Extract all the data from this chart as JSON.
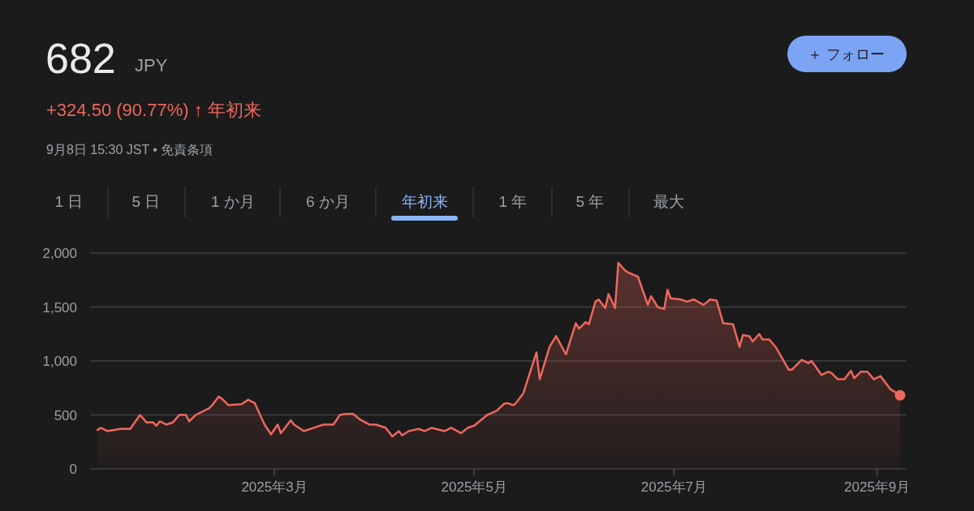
{
  "chart_data": {
    "type": "area",
    "title": "682",
    "subtitle": "+324.50 (90.77%) ↑ 年初来",
    "annotations": [
      "JPY",
      "9月8日 15:30 JST • 免責条項",
      "＋ フォロー",
      "1 日",
      "5 日",
      "1 か月",
      "6 か月",
      "年初来",
      "1 年",
      "5 年",
      "最大"
    ],
    "x": [
      "2025-01-06",
      "2025-01-07",
      "2025-01-09",
      "2025-01-13",
      "2025-01-16",
      "2025-01-19",
      "2025-01-21",
      "2025-01-23",
      "2025-01-24",
      "2025-01-25",
      "2025-01-27",
      "2025-01-29",
      "2025-01-31",
      "2025-02-02",
      "2025-02-03",
      "2025-02-05",
      "2025-02-09",
      "2025-02-10",
      "2025-02-12",
      "2025-02-13",
      "2025-02-15",
      "2025-02-19",
      "2025-02-21",
      "2025-02-23",
      "2025-02-26",
      "2025-02-28",
      "2025-03-02",
      "2025-03-03",
      "2025-03-06",
      "2025-03-07",
      "2025-03-10",
      "2025-03-14",
      "2025-03-16",
      "2025-03-19",
      "2025-03-21",
      "2025-03-23",
      "2025-03-25",
      "2025-03-27",
      "2025-03-30",
      "2025-04-01",
      "2025-04-04",
      "2025-04-06",
      "2025-04-08",
      "2025-04-09",
      "2025-04-11",
      "2025-04-14",
      "2025-04-16",
      "2025-04-18",
      "2025-04-22",
      "2025-04-24",
      "2025-04-27",
      "2025-04-29",
      "2025-05-01",
      "2025-05-05",
      "2025-05-08",
      "2025-05-10",
      "2025-05-11",
      "2025-05-13",
      "2025-05-14",
      "2025-05-16",
      "2025-05-18",
      "2025-05-20",
      "2025-05-21",
      "2025-05-24",
      "2025-05-26",
      "2025-05-29",
      "2025-06-01",
      "2025-06-02",
      "2025-06-04",
      "2025-06-05",
      "2025-06-07",
      "2025-06-08",
      "2025-06-10",
      "2025-06-11",
      "2025-06-13",
      "2025-06-14",
      "2025-06-16",
      "2025-06-17",
      "2025-06-20",
      "2025-06-23",
      "2025-06-24",
      "2025-06-26",
      "2025-06-28",
      "2025-06-29",
      "2025-06-30",
      "2025-07-03",
      "2025-07-05",
      "2025-07-07",
      "2025-07-10",
      "2025-07-12",
      "2025-07-14",
      "2025-07-16",
      "2025-07-19",
      "2025-07-21",
      "2025-07-22",
      "2025-07-24",
      "2025-07-25",
      "2025-07-27",
      "2025-07-28",
      "2025-07-30",
      "2025-08-01",
      "2025-08-05",
      "2025-08-06",
      "2025-08-09",
      "2025-08-11",
      "2025-08-12",
      "2025-08-15",
      "2025-08-17",
      "2025-08-18",
      "2025-08-20",
      "2025-08-22",
      "2025-08-24",
      "2025-08-25",
      "2025-08-27",
      "2025-08-29",
      "2025-08-31",
      "2025-09-02",
      "2025-09-05",
      "2025-09-08"
    ],
    "series": [
      {
        "color": "#ee675c",
        "values": [
          360,
          380,
          350,
          370,
          370,
          500,
          430,
          430,
          400,
          440,
          410,
          430,
          500,
          500,
          440,
          500,
          560,
          590,
          670,
          650,
          590,
          600,
          640,
          610,
          410,
          320,
          410,
          330,
          450,
          410,
          350,
          390,
          410,
          410,
          500,
          510,
          510,
          460,
          410,
          410,
          380,
          300,
          350,
          310,
          350,
          370,
          350,
          380,
          350,
          380,
          330,
          380,
          400,
          500,
          540,
          600,
          610,
          590,
          620,
          700,
          890,
          1080,
          830,
          1130,
          1230,
          1060,
          1350,
          1300,
          1360,
          1340,
          1550,
          1570,
          1490,
          1620,
          1490,
          1910,
          1840,
          1820,
          1780,
          1520,
          1600,
          1500,
          1480,
          1660,
          1580,
          1570,
          1550,
          1570,
          1520,
          1570,
          1560,
          1350,
          1340,
          1130,
          1240,
          1230,
          1180,
          1250,
          1200,
          1200,
          1130,
          920,
          920,
          1010,
          980,
          1000,
          870,
          900,
          890,
          830,
          830,
          910,
          840,
          900,
          900,
          830,
          860,
          740,
          682
        ]
      },
      {
        "type": "scatter",
        "color": "#ee675c",
        "marker": "circle",
        "x": [
          "2025-09-08"
        ],
        "values": [
          682
        ]
      }
    ],
    "xlim": [
      "2025-01-04",
      "2025-09-10"
    ],
    "xticks": [
      {
        "value": "2025-03-01",
        "label": "2025年3月"
      },
      {
        "value": "2025-05-01",
        "label": "2025年5月"
      },
      {
        "value": "2025-07-01",
        "label": "2025年7月"
      },
      {
        "value": "2025-09-01",
        "label": "2025年9月"
      }
    ],
    "ylim": [
      0,
      2000
    ],
    "yticks": [
      0,
      500,
      {
        "value": 1000,
        "label": "1,000"
      },
      {
        "value": 1500,
        "label": "1,500"
      },
      {
        "value": 2000,
        "label": "2,000"
      }
    ],
    "grid": "y"
  }
}
